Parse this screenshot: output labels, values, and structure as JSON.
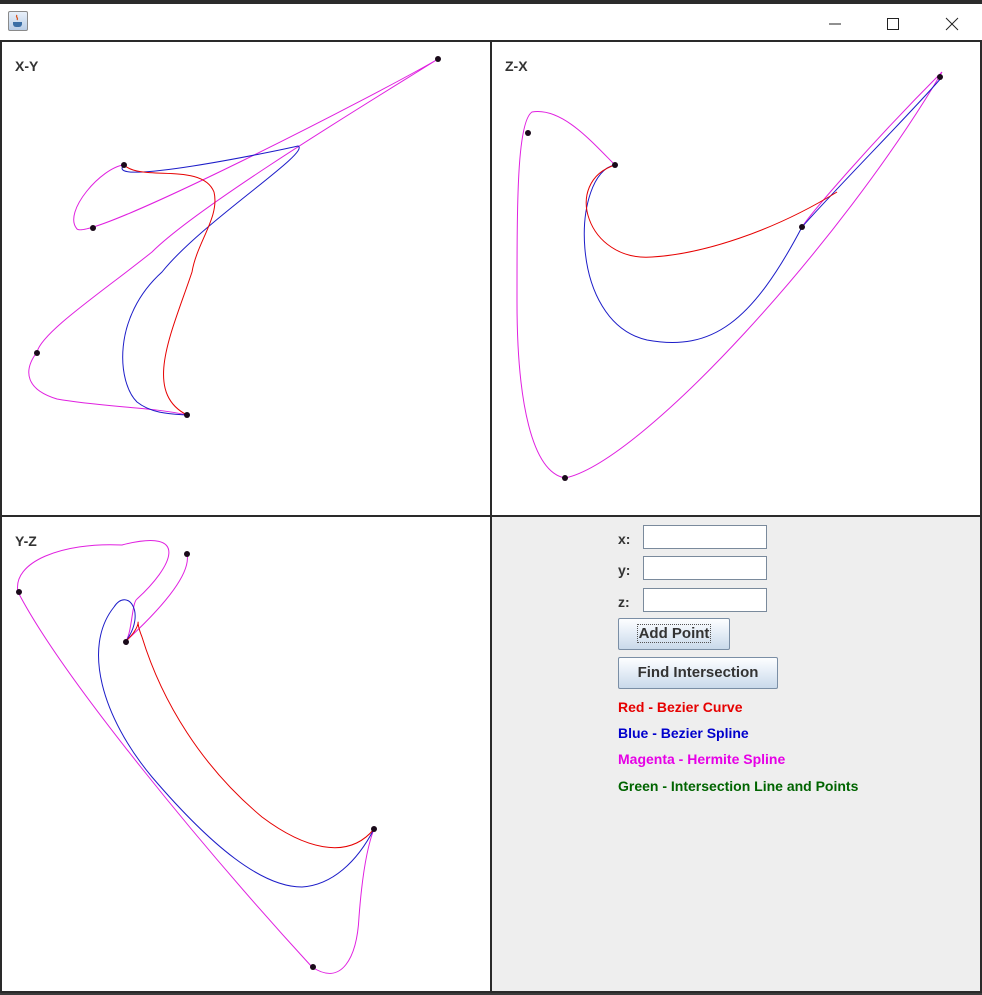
{
  "window": {
    "app_icon": "java-cup-icon"
  },
  "panels": {
    "xy": {
      "label": "X-Y"
    },
    "zx": {
      "label": "Z-X"
    },
    "yz": {
      "label": "Y-Z"
    }
  },
  "controls": {
    "x_label": "x:",
    "y_label": "y:",
    "z_label": "z:",
    "x_value": "",
    "y_value": "",
    "z_value": "",
    "add_point": "Add Point",
    "find_intersection": "Find Intersection"
  },
  "legend": [
    {
      "text": "Red - Bezier Curve",
      "color": "#e60000"
    },
    {
      "text": "Blue - Bezier Spline",
      "color": "#0000cc"
    },
    {
      "text": "Magenta - Hermite Spline",
      "color": "#e600e6"
    },
    {
      "text": "Green - Intersection Line and Points",
      "color": "#006400"
    }
  ],
  "colors": {
    "bezier_curve": "#e60000",
    "bezier_spline": "#1c1cc8",
    "hermite_spline": "#e020e0",
    "control_point": "#1a0a1a"
  }
}
